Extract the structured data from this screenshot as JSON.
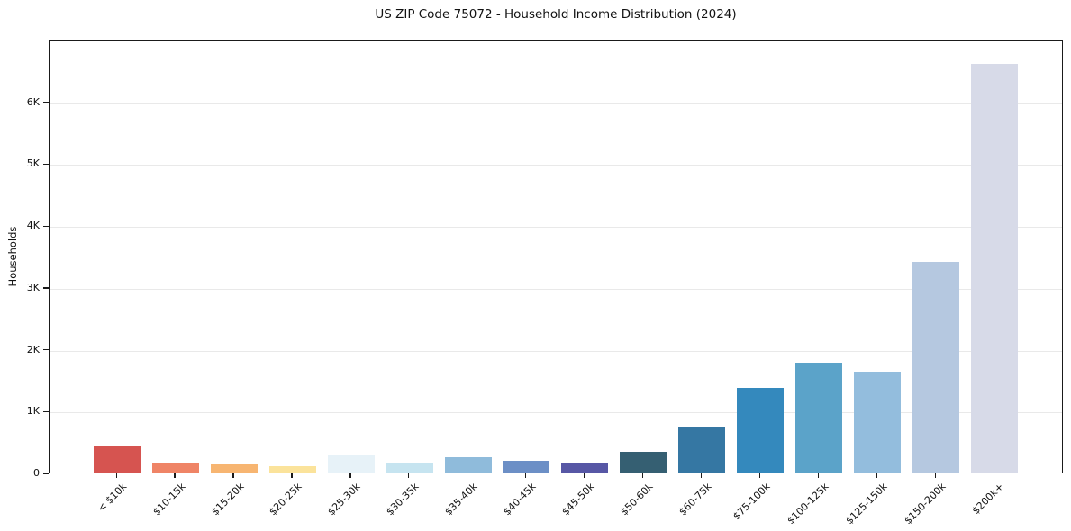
{
  "chart_data": {
    "type": "bar",
    "title": "US ZIP Code 75072 - Household Income Distribution (2024)",
    "ylabel": "Households",
    "xlabel": "",
    "categories": [
      "< $10k",
      "$10-15k",
      "$15-20k",
      "$20-25k",
      "$25-30k",
      "$30-35k",
      "$35-40k",
      "$40-45k",
      "$45-50k",
      "$50-60k",
      "$60-75k",
      "$75-100k",
      "$100-125k",
      "$125-150k",
      "$150-200k",
      "$200k+"
    ],
    "values": [
      435,
      160,
      135,
      100,
      290,
      165,
      250,
      185,
      165,
      340,
      750,
      1370,
      1785,
      1630,
      3420,
      6640
    ],
    "bar_colors": [
      "#d65450",
      "#ef8466",
      "#f7b571",
      "#fbe39b",
      "#e7f2f8",
      "#c6e4f0",
      "#8fbbdb",
      "#6c8fc6",
      "#5757a5",
      "#355f72",
      "#3577a3",
      "#3489bd",
      "#5ba3c9",
      "#93bddd",
      "#b5c8e0",
      "#d7dae8"
    ],
    "ylim": [
      0,
      7000
    ],
    "ytick_values": [
      0,
      1000,
      2000,
      3000,
      4000,
      5000,
      6000
    ],
    "ytick_labels": [
      "0",
      "1K",
      "2K",
      "3K",
      "4K",
      "5K",
      "6K"
    ],
    "grid": true,
    "legend_position": "none",
    "plot_background": "#ffffff",
    "grid_color": "#e9e9e9",
    "spine_color": "#1a1a1a"
  }
}
